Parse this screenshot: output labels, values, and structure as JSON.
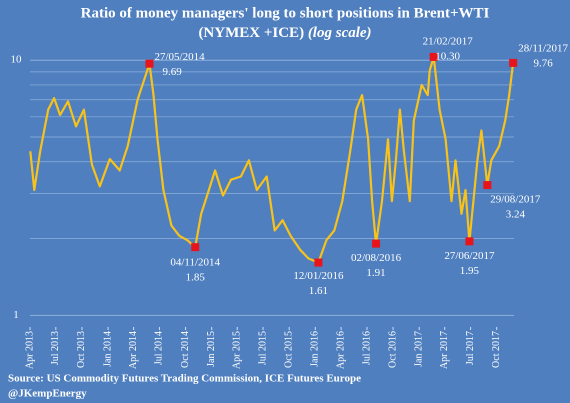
{
  "chart_data": {
    "type": "line",
    "title": "Ratio of money managers' long to short positions in  Brent+WTI",
    "subtitle": "(NYMEX +ICE)",
    "subtitle_note": "(log scale)",
    "source": [
      "Source: US Commodity Futures Trading Commission, ICE Futures Europe",
      "@JKempEnergy"
    ],
    "log_scale": true,
    "grid": true,
    "ylim": [
      0.9,
      12
    ],
    "yticks": [
      1,
      10
    ],
    "yminor": [
      2,
      3,
      4,
      5,
      6,
      7,
      8,
      9
    ],
    "xlim": [
      "2013-04-01",
      "2017-12-01"
    ],
    "xticks": [
      {
        "value": "2013-04-01",
        "label": "Apr 2013"
      },
      {
        "value": "2013-07-01",
        "label": "Jul 2013"
      },
      {
        "value": "2013-10-01",
        "label": "Oct 2013"
      },
      {
        "value": "2014-01-01",
        "label": "Jan 2014"
      },
      {
        "value": "2014-04-01",
        "label": "Apr 2014"
      },
      {
        "value": "2014-07-01",
        "label": "Jul 2014"
      },
      {
        "value": "2014-10-01",
        "label": "Oct 2014"
      },
      {
        "value": "2015-01-01",
        "label": "Jan 2015"
      },
      {
        "value": "2015-04-01",
        "label": "Apr 2015"
      },
      {
        "value": "2015-07-01",
        "label": "Jul 2015"
      },
      {
        "value": "2015-10-01",
        "label": "Oct 2015"
      },
      {
        "value": "2016-01-01",
        "label": "Jan 2016"
      },
      {
        "value": "2016-04-01",
        "label": "Apr 2016"
      },
      {
        "value": "2016-07-01",
        "label": "Jul 2016"
      },
      {
        "value": "2016-10-01",
        "label": "Oct 2016"
      },
      {
        "value": "2017-01-01",
        "label": "Jan 2017"
      },
      {
        "value": "2017-04-01",
        "label": "Apr 2017"
      },
      {
        "value": "2017-07-01",
        "label": "Jul 2017"
      },
      {
        "value": "2017-10-01",
        "label": "Oct 2017"
      }
    ],
    "x": [
      "2013-04-02",
      "2013-04-16",
      "2013-05-07",
      "2013-06-04",
      "2013-06-25",
      "2013-07-16",
      "2013-08-13",
      "2013-09-10",
      "2013-10-08",
      "2013-11-05",
      "2013-12-03",
      "2014-01-07",
      "2014-02-11",
      "2014-03-11",
      "2014-04-15",
      "2014-05-27",
      "2014-06-10",
      "2014-06-24",
      "2014-07-15",
      "2014-08-12",
      "2014-09-09",
      "2014-10-07",
      "2014-11-04",
      "2014-11-25",
      "2014-12-16",
      "2015-01-13",
      "2015-02-10",
      "2015-03-10",
      "2015-04-14",
      "2015-05-12",
      "2015-06-09",
      "2015-07-14",
      "2015-08-11",
      "2015-09-08",
      "2015-10-06",
      "2015-11-10",
      "2015-12-08",
      "2016-01-12",
      "2016-02-09",
      "2016-03-08",
      "2016-04-05",
      "2016-05-03",
      "2016-05-24",
      "2016-06-14",
      "2016-07-05",
      "2016-07-19",
      "2016-08-02",
      "2016-08-23",
      "2016-09-13",
      "2016-09-27",
      "2016-10-11",
      "2016-10-25",
      "2016-11-08",
      "2016-11-29",
      "2016-12-13",
      "2017-01-10",
      "2017-01-31",
      "2017-02-07",
      "2017-02-21",
      "2017-03-14",
      "2017-04-04",
      "2017-04-25",
      "2017-05-09",
      "2017-05-30",
      "2017-06-13",
      "2017-06-27",
      "2017-07-11",
      "2017-07-25",
      "2017-08-08",
      "2017-08-29",
      "2017-09-12",
      "2017-10-10",
      "2017-10-31",
      "2017-11-14",
      "2017-11-28"
    ],
    "series": [
      {
        "name": "ratio",
        "color": "#f7c21a",
        "values": [
          4.4,
          3.1,
          4.4,
          6.4,
          7.1,
          6.1,
          6.9,
          5.5,
          6.4,
          3.9,
          3.2,
          4.1,
          3.7,
          4.6,
          7.0,
          9.69,
          7.3,
          4.9,
          3.1,
          2.25,
          2.05,
          1.97,
          1.85,
          2.5,
          2.95,
          3.7,
          2.95,
          3.4,
          3.5,
          4.05,
          3.1,
          3.5,
          2.15,
          2.36,
          2.05,
          1.8,
          1.67,
          1.61,
          1.97,
          2.15,
          2.8,
          4.4,
          6.4,
          7.3,
          4.9,
          2.8,
          1.91,
          2.8,
          4.9,
          2.8,
          4.05,
          6.4,
          4.4,
          2.8,
          5.8,
          8.0,
          7.3,
          9.1,
          10.3,
          6.4,
          4.9,
          2.8,
          4.05,
          2.5,
          3.1,
          1.95,
          2.8,
          4.05,
          5.3,
          3.24,
          4.05,
          4.6,
          5.8,
          7.3,
          9.76
        ]
      }
    ],
    "annotations": [
      {
        "x": "2014-05-27",
        "label": "27/05/2014",
        "value": 9.69,
        "value_label": "9.69"
      },
      {
        "x": "2014-11-04",
        "label": "04/11/2014",
        "value": 1.85,
        "value_label": "1.85"
      },
      {
        "x": "2016-01-12",
        "label": "12/01/2016",
        "value": 1.61,
        "value_label": "1.61"
      },
      {
        "x": "2016-08-02",
        "label": "02/08/2016",
        "value": 1.91,
        "value_label": "1.91"
      },
      {
        "x": "2017-02-21",
        "label": "21/02/2017",
        "value": 10.3,
        "value_label": "10.30"
      },
      {
        "x": "2017-06-27",
        "label": "27/06/2017",
        "value": 1.95,
        "value_label": "1.95"
      },
      {
        "x": "2017-08-29",
        "label": "29/08/2017",
        "value": 3.24,
        "value_label": "3.24"
      },
      {
        "x": "2017-11-28",
        "label": "28/11/2017",
        "value": 9.76,
        "value_label": "9.76"
      }
    ],
    "marker_color": "#e8141c"
  }
}
